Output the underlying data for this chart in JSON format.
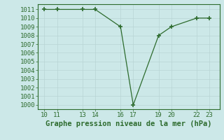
{
  "x": [
    10,
    11,
    13,
    14,
    16,
    17,
    19,
    20,
    22,
    23
  ],
  "y": [
    1011,
    1011,
    1011,
    1011,
    1009,
    1000,
    1008,
    1009,
    1010,
    1010
  ],
  "line_color": "#2d6b2d",
  "marker_color": "#2d6b2d",
  "bg_color": "#cce8e8",
  "grid_color": "#b8d4d4",
  "border_color": "#2d6b2d",
  "xlabel": "Graphe pression niveau de la mer (hPa)",
  "xlabel_color": "#2d6b2d",
  "ylabel_ticks": [
    1000,
    1001,
    1002,
    1003,
    1004,
    1005,
    1006,
    1007,
    1008,
    1009,
    1010,
    1011
  ],
  "xticks": [
    10,
    11,
    13,
    14,
    16,
    17,
    19,
    20,
    22,
    23
  ],
  "ylim": [
    999.5,
    1011.6
  ],
  "xlim": [
    9.5,
    23.8
  ],
  "tick_fontsize": 6.5,
  "xlabel_fontsize": 7.5
}
